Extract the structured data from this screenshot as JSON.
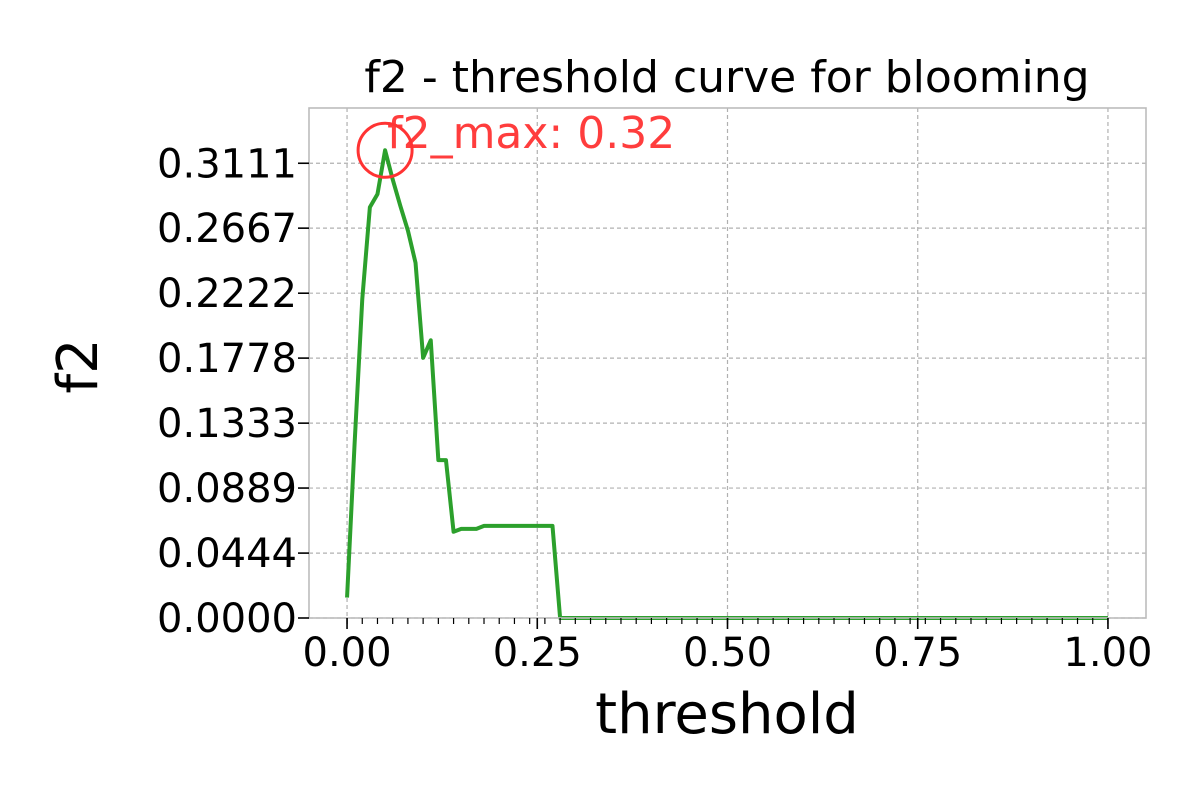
{
  "chart_data": {
    "type": "line",
    "title": "f2 - threshold curve for blooming",
    "xlabel": "threshold",
    "ylabel": "f2",
    "xlim": [
      -0.05,
      1.05
    ],
    "ylim": [
      0.0,
      0.3489
    ],
    "x_ticks": [
      0.0,
      0.25,
      0.5,
      0.75,
      1.0
    ],
    "x_tick_labels": [
      "0.00",
      "0.25",
      "0.50",
      "0.75",
      "1.00"
    ],
    "y_ticks": [
      0.0,
      0.0444,
      0.0889,
      0.1333,
      0.1778,
      0.2222,
      0.2667,
      0.3111
    ],
    "y_tick_labels": [
      "0.0000",
      "0.0444",
      "0.0889",
      "0.1333",
      "0.1778",
      "0.2222",
      "0.2667",
      "0.3111"
    ],
    "x_minor_step": 0.02,
    "grid": true,
    "line_color": "#2ca02c",
    "series": [
      {
        "x": [
          0.0,
          0.01,
          0.02,
          0.03,
          0.04,
          0.05,
          0.06,
          0.07,
          0.08,
          0.09,
          0.1,
          0.11,
          0.12,
          0.13,
          0.14,
          0.15,
          0.16,
          0.17,
          0.18,
          0.19,
          0.2,
          0.21,
          0.22,
          0.23,
          0.24,
          0.25,
          0.26,
          0.27,
          0.28,
          0.29,
          0.3,
          0.35,
          0.4,
          0.45,
          0.5,
          0.55,
          0.6,
          0.65,
          0.7,
          0.75,
          0.8,
          0.85,
          0.9,
          0.95,
          1.0
        ],
        "y": [
          0.014,
          0.12,
          0.218,
          0.281,
          0.29,
          0.32,
          0.3,
          0.282,
          0.265,
          0.243,
          0.178,
          0.19,
          0.108,
          0.108,
          0.059,
          0.061,
          0.061,
          0.061,
          0.063,
          0.063,
          0.063,
          0.063,
          0.063,
          0.063,
          0.063,
          0.063,
          0.063,
          0.063,
          0.0,
          0.0,
          0.0,
          0.0,
          0.0,
          0.0,
          0.0,
          0.0,
          0.0,
          0.0,
          0.0,
          0.0,
          0.0,
          0.0,
          0.0,
          0.0,
          0.0
        ]
      }
    ],
    "annotation": {
      "text": "f2_max: 0.32",
      "x": 0.05,
      "y": 0.32,
      "color": "#ff3333"
    }
  }
}
